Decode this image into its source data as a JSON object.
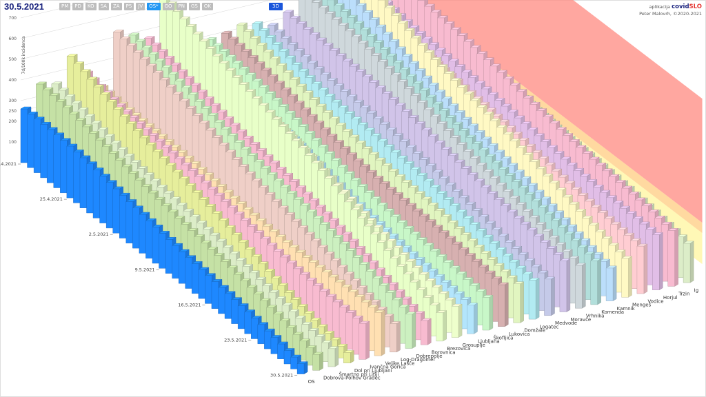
{
  "header": {
    "date": "30.5.2021",
    "regions": [
      {
        "label": "PM",
        "active": false
      },
      {
        "label": "PD",
        "active": false
      },
      {
        "label": "KO",
        "active": false
      },
      {
        "label": "SA",
        "active": false
      },
      {
        "label": "ZA",
        "active": false
      },
      {
        "label": "PS",
        "active": false
      },
      {
        "label": "JV",
        "active": false
      },
      {
        "label": "OS*",
        "active": true
      },
      {
        "label": "GO",
        "active": false
      },
      {
        "label": "PN",
        "active": false
      },
      {
        "label": "GS",
        "active": false
      },
      {
        "label": "OK",
        "active": false
      }
    ],
    "view_button": "3D",
    "app_prefix": "aplikacija",
    "app_name_a": "covid",
    "app_name_b": "SLO",
    "author": "Peter Malovrh, ©2020-2021"
  },
  "colors": {
    "band_low": "#a5d6a7",
    "band_mid": "#fff59d",
    "band_high": "#ffcc80",
    "band_top": "#ff8a80"
  },
  "chart_data": {
    "type": "bar",
    "mode": "3d",
    "ylabel": "7d/100k incidenca",
    "yticks": [
      100,
      200,
      250,
      300,
      400,
      500,
      600,
      700,
      800
    ],
    "ylim": [
      0,
      900
    ],
    "dates": [
      "18.4.2021",
      "25.4.2021",
      "2.5.2021",
      "9.5.2021",
      "16.5.2021",
      "23.5.2021",
      "30.5.2021"
    ],
    "series": [
      {
        "name": "OS",
        "color": "#1e88ff",
        "start": 260,
        "end": 45
      },
      {
        "name": "Dobrova-Polhov Gradec",
        "color": "#c5e1a5",
        "start": 330,
        "end": 90
      },
      {
        "name": "Šmartno pri Litiji",
        "color": "#dcedc8",
        "start": 300,
        "end": 110
      },
      {
        "name": "Dol pri Ljubljani",
        "color": "#e6ee9c",
        "start": 430,
        "end": 70
      },
      {
        "name": "Ivančna Gorica",
        "color": "#f8bbd0",
        "start": 360,
        "end": 180
      },
      {
        "name": "Velike Lašče",
        "color": "#ffe0b2",
        "start": 300,
        "end": 200
      },
      {
        "name": "Log-Dragomer",
        "color": "#efcfc7",
        "start": 560,
        "end": 120
      },
      {
        "name": "Dobrepolje",
        "color": "#ccf0c0",
        "start": 520,
        "end": 150
      },
      {
        "name": "Borovnica",
        "color": "#f8bbd0",
        "start": 470,
        "end": 110
      },
      {
        "name": "Brezovica",
        "color": "#e8ffc8",
        "start": 640,
        "end": 140
      },
      {
        "name": "Grosuplje",
        "color": "#eeffcc",
        "start": 440,
        "end": 160
      },
      {
        "name": "Ljubljana",
        "color": "#b3e5fc",
        "start": 320,
        "end": 150
      },
      {
        "name": "Škofljica",
        "color": "#c8f7c8",
        "start": 360,
        "end": 170
      },
      {
        "name": "Lukovica",
        "color": "#d7b0b0",
        "start": 380,
        "end": 210
      },
      {
        "name": "Domžale",
        "color": "#e1f5c0",
        "start": 420,
        "end": 190
      },
      {
        "name": "Logatec",
        "color": "#b2ebf2",
        "start": 430,
        "end": 180
      },
      {
        "name": "Medvode",
        "color": "#c5cae9",
        "start": 420,
        "end": 160
      },
      {
        "name": "Moravče",
        "color": "#d1c4e9",
        "start": 460,
        "end": 230
      },
      {
        "name": "Vrhnika",
        "color": "#cfd8dc",
        "start": 520,
        "end": 200
      },
      {
        "name": "Komenda",
        "color": "#b2dfdb",
        "start": 480,
        "end": 220
      },
      {
        "name": "Kamnik",
        "color": "#bbdefb",
        "start": 490,
        "end": 180
      },
      {
        "name": "Mengeš",
        "color": "#fff9c4",
        "start": 560,
        "end": 210
      },
      {
        "name": "Vodice",
        "color": "#ffcdd2",
        "start": 430,
        "end": 240
      },
      {
        "name": "Horjul",
        "color": "#e1bee7",
        "start": 420,
        "end": 260
      },
      {
        "name": "Trzin",
        "color": "#f8bbd0",
        "start": 520,
        "end": 250
      },
      {
        "name": "Ig",
        "color": "#dcedc8",
        "start": 380,
        "end": 170
      }
    ],
    "band_thresholds": [
      100,
      250,
      300,
      900
    ]
  }
}
